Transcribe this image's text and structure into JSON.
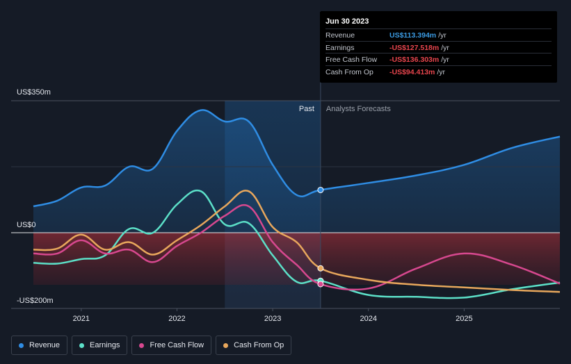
{
  "tooltip": {
    "date": "Jun 30 2023",
    "rows": [
      {
        "label": "Revenue",
        "value": "US$113.394m",
        "unit": "/yr",
        "color": "#3b9ae1"
      },
      {
        "label": "Earnings",
        "value": "-US$127.518m",
        "unit": "/yr",
        "color": "#e8454d"
      },
      {
        "label": "Free Cash Flow",
        "value": "-US$136.303m",
        "unit": "/yr",
        "color": "#e8454d"
      },
      {
        "label": "Cash From Op",
        "value": "-US$94.413m",
        "unit": "/yr",
        "color": "#e8454d"
      }
    ]
  },
  "legend": [
    {
      "label": "Revenue",
      "color": "#2f8de4"
    },
    {
      "label": "Earnings",
      "color": "#5ce0c8"
    },
    {
      "label": "Free Cash Flow",
      "color": "#d7488f"
    },
    {
      "label": "Cash From Op",
      "color": "#e8a75c"
    }
  ],
  "chart_data": {
    "type": "line",
    "title": "",
    "xlabel": "",
    "ylabel": "",
    "ylim": [
      -200,
      350
    ],
    "xlim": [
      2020.5,
      2026.0
    ],
    "y_tick_labels": [
      {
        "value": 350,
        "label": "US$350m"
      },
      {
        "value": 0,
        "label": "US$0"
      },
      {
        "value": -200,
        "label": "-US$200m"
      }
    ],
    "x_ticks": [
      2021,
      2022,
      2023,
      2024,
      2025
    ],
    "past_label": "Past",
    "forecast_label": "Analysts Forecasts",
    "past_region": [
      2022.5,
      2023.5
    ],
    "divider_x": 2023.5,
    "series": [
      {
        "name": "Revenue",
        "color": "#2f8de4",
        "points": [
          [
            2020.5,
            70
          ],
          [
            2020.75,
            85
          ],
          [
            2021.0,
            120
          ],
          [
            2021.25,
            125
          ],
          [
            2021.5,
            175
          ],
          [
            2021.75,
            170
          ],
          [
            2022.0,
            270
          ],
          [
            2022.25,
            325
          ],
          [
            2022.5,
            295
          ],
          [
            2022.75,
            295
          ],
          [
            2023.0,
            180
          ],
          [
            2023.25,
            100
          ],
          [
            2023.5,
            113.4
          ],
          [
            2024.0,
            132
          ],
          [
            2024.5,
            152
          ],
          [
            2025.0,
            180
          ],
          [
            2025.5,
            225
          ],
          [
            2026.0,
            255
          ]
        ]
      },
      {
        "name": "Earnings",
        "color": "#5ce0c8",
        "points": [
          [
            2020.5,
            -80
          ],
          [
            2020.75,
            -82
          ],
          [
            2021.0,
            -70
          ],
          [
            2021.25,
            -60
          ],
          [
            2021.5,
            10
          ],
          [
            2021.75,
            0
          ],
          [
            2022.0,
            75
          ],
          [
            2022.25,
            110
          ],
          [
            2022.5,
            22
          ],
          [
            2022.75,
            25
          ],
          [
            2023.0,
            -60
          ],
          [
            2023.25,
            -130
          ],
          [
            2023.5,
            -127.5
          ],
          [
            2024.0,
            -165
          ],
          [
            2024.5,
            -170
          ],
          [
            2025.0,
            -172
          ],
          [
            2025.5,
            -150
          ],
          [
            2026.0,
            -132
          ]
        ]
      },
      {
        "name": "Free Cash Flow",
        "color": "#d7488f",
        "points": [
          [
            2020.5,
            -55
          ],
          [
            2020.75,
            -55
          ],
          [
            2021.0,
            -20
          ],
          [
            2021.25,
            -55
          ],
          [
            2021.5,
            -45
          ],
          [
            2021.75,
            -78
          ],
          [
            2022.0,
            -35
          ],
          [
            2022.25,
            0
          ],
          [
            2022.5,
            45
          ],
          [
            2022.75,
            70
          ],
          [
            2023.0,
            -25
          ],
          [
            2023.25,
            -85
          ],
          [
            2023.5,
            -136.3
          ],
          [
            2024.0,
            -148
          ],
          [
            2024.5,
            -95
          ],
          [
            2025.0,
            -55
          ],
          [
            2025.5,
            -85
          ],
          [
            2026.0,
            -135
          ]
        ]
      },
      {
        "name": "Cash From Op",
        "color": "#e8a75c",
        "points": [
          [
            2020.5,
            -45
          ],
          [
            2020.75,
            -42
          ],
          [
            2021.0,
            -5
          ],
          [
            2021.25,
            -45
          ],
          [
            2021.5,
            -25
          ],
          [
            2021.75,
            -58
          ],
          [
            2022.0,
            -20
          ],
          [
            2022.25,
            20
          ],
          [
            2022.5,
            70
          ],
          [
            2022.75,
            110
          ],
          [
            2023.0,
            15
          ],
          [
            2023.25,
            -25
          ],
          [
            2023.5,
            -94.4
          ],
          [
            2024.0,
            -125
          ],
          [
            2024.5,
            -138
          ],
          [
            2025.0,
            -145
          ],
          [
            2025.5,
            -152
          ],
          [
            2026.0,
            -157
          ]
        ]
      }
    ],
    "highlight_points": [
      {
        "series": "Revenue",
        "x": 2023.5,
        "y": 113.4
      },
      {
        "series": "Earnings",
        "x": 2023.5,
        "y": -127.5
      },
      {
        "series": "Free Cash Flow",
        "x": 2023.5,
        "y": -136.3
      },
      {
        "series": "Cash From Op",
        "x": 2023.5,
        "y": -94.4
      }
    ]
  }
}
